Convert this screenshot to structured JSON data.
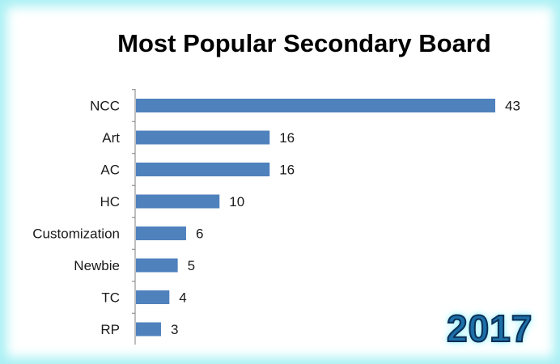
{
  "chart_data": {
    "type": "bar",
    "orientation": "horizontal",
    "title": "Most Popular Secondary Board",
    "categories": [
      "NCC",
      "Art",
      "AC",
      "HC",
      "Customization",
      "Newbie",
      "TC",
      "RP"
    ],
    "values": [
      43,
      16,
      16,
      10,
      6,
      5,
      4,
      3
    ],
    "xlabel": "",
    "ylabel": "",
    "xlim": [
      0,
      43
    ],
    "grid": false,
    "legend": "none",
    "bar_color": "#4f81bd",
    "data_labels": true
  },
  "badge": {
    "year": "2017"
  }
}
